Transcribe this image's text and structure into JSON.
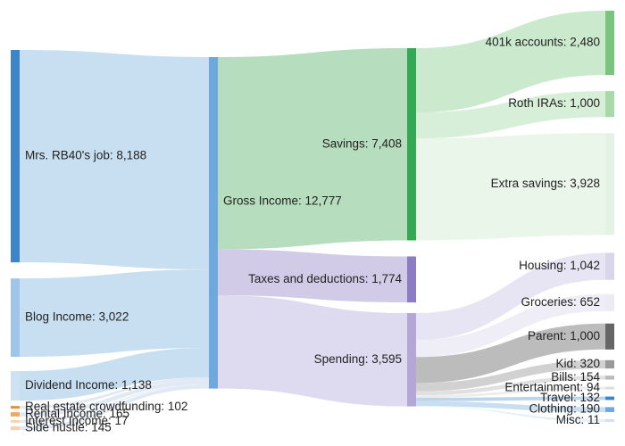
{
  "chart_data": {
    "type": "sankey",
    "title": "",
    "units": "",
    "columns": [
      [
        {
          "id": "job",
          "label": "Mrs. RB40's job: 8,188",
          "value": 8188,
          "color": "#3d85c6",
          "flow_color": "#c5ddf0",
          "label_side": "right"
        },
        {
          "id": "blog",
          "label": "Blog Income: 3,022",
          "value": 3022,
          "color": "#9fc5e8",
          "flow_color": "#c5ddf0",
          "label_side": "right"
        },
        {
          "id": "dividend",
          "label": "Dividend Income: 1,138",
          "value": 1138,
          "color": "#cfe2f3",
          "flow_color": "#c5ddf0",
          "label_side": "right"
        },
        {
          "id": "crowd",
          "label": "Real estate crowdfunding: 102",
          "value": 102,
          "color": "#e69138",
          "flow_color": "#dfe8f3",
          "label_side": "right"
        },
        {
          "id": "rental",
          "label": "Rental Income: 165",
          "value": 165,
          "color": "#f0a869",
          "flow_color": "#dfe8f3",
          "label_side": "right"
        },
        {
          "id": "interest",
          "label": "Interest Income: 17",
          "value": 17,
          "color": "#f6d2b0",
          "flow_color": "#dfe8f3",
          "label_side": "right"
        },
        {
          "id": "hustle",
          "label": "Side hustle: 145",
          "value": 145,
          "color": "#f6d2b0",
          "flow_color": "#dfe8f3",
          "label_side": "right"
        }
      ],
      [
        {
          "id": "gross",
          "label": "Gross Income: 12,777",
          "value": 12777,
          "color": "#6fa8dc",
          "label_side": "right"
        }
      ],
      [
        {
          "id": "savings",
          "label": "Savings: 7,408",
          "value": 7408,
          "color": "#34a853",
          "flow_color": "#b2dbba",
          "label_side": "left"
        },
        {
          "id": "taxes",
          "label": "Taxes and deductions: 1,774",
          "value": 1774,
          "color": "#8e7cc3",
          "flow_color": "#cfc8e6",
          "label_side": "left"
        },
        {
          "id": "spending",
          "label": "Spending: 3,595",
          "value": 3595,
          "color": "#b4a7d6",
          "flow_color": "#dcd8ee",
          "label_side": "left"
        }
      ],
      [
        {
          "id": "k401",
          "label": "401k accounts: 2,480",
          "value": 2480,
          "color": "#7bc47f",
          "flow_color": "#c8e8ca",
          "label_side": "left"
        },
        {
          "id": "roth",
          "label": "Roth IRAs: 1,000",
          "value": 1000,
          "color": "#a8d9aa",
          "flow_color": "#d5eed6",
          "label_side": "left"
        },
        {
          "id": "extra",
          "label": "Extra savings: 3,928",
          "value": 3928,
          "color": "#e3f3e3",
          "flow_color": "#e8f5e8",
          "label_side": "left"
        },
        {
          "id": "housing",
          "label": "Housing: 1,042",
          "value": 1042,
          "color": "#d9d6ec",
          "flow_color": "#e6e4f2",
          "label_side": "left"
        },
        {
          "id": "groceries",
          "label": "Groceries: 652",
          "value": 652,
          "color": "#eceaf5",
          "flow_color": "#eeedf6",
          "label_side": "left"
        },
        {
          "id": "parent",
          "label": "Parent: 1,000",
          "value": 1000,
          "color": "#666666",
          "flow_color": "#b8b8b8",
          "label_side": "left"
        },
        {
          "id": "kid",
          "label": "Kid: 320",
          "value": 320,
          "color": "#999999",
          "flow_color": "#cfcfcf",
          "label_side": "left"
        },
        {
          "id": "bills",
          "label": "Bills: 154",
          "value": 154,
          "color": "#bbbbbb",
          "flow_color": "#dedede",
          "label_side": "left"
        },
        {
          "id": "entertainment",
          "label": "Entertainment: 94",
          "value": 94,
          "color": "#dddddd",
          "flow_color": "#ebebeb",
          "label_side": "left"
        },
        {
          "id": "travel",
          "label": "Travel: 132",
          "value": 132,
          "color": "#3d85c6",
          "flow_color": "#b9d3ea",
          "label_side": "left"
        },
        {
          "id": "clothing",
          "label": "Clothing: 190",
          "value": 190,
          "color": "#6fa8dc",
          "flow_color": "#c5ddf0",
          "label_side": "left"
        },
        {
          "id": "misc",
          "label": "Misc: 11",
          "value": 11,
          "color": "#cfe2f3",
          "flow_color": "#e3eef8",
          "label_side": "left"
        }
      ]
    ],
    "links": [
      {
        "source": "job",
        "target": "gross",
        "value": 8188
      },
      {
        "source": "blog",
        "target": "gross",
        "value": 3022
      },
      {
        "source": "dividend",
        "target": "gross",
        "value": 1138
      },
      {
        "source": "crowd",
        "target": "gross",
        "value": 102
      },
      {
        "source": "rental",
        "target": "gross",
        "value": 165
      },
      {
        "source": "interest",
        "target": "gross",
        "value": 17
      },
      {
        "source": "hustle",
        "target": "gross",
        "value": 145
      },
      {
        "source": "gross",
        "target": "savings",
        "value": 7408
      },
      {
        "source": "gross",
        "target": "taxes",
        "value": 1774
      },
      {
        "source": "gross",
        "target": "spending",
        "value": 3595
      },
      {
        "source": "savings",
        "target": "k401",
        "value": 2480
      },
      {
        "source": "savings",
        "target": "roth",
        "value": 1000
      },
      {
        "source": "savings",
        "target": "extra",
        "value": 3928
      },
      {
        "source": "spending",
        "target": "housing",
        "value": 1042
      },
      {
        "source": "spending",
        "target": "groceries",
        "value": 652
      },
      {
        "source": "spending",
        "target": "parent",
        "value": 1000
      },
      {
        "source": "spending",
        "target": "kid",
        "value": 320
      },
      {
        "source": "spending",
        "target": "bills",
        "value": 154
      },
      {
        "source": "spending",
        "target": "entertainment",
        "value": 94
      },
      {
        "source": "spending",
        "target": "travel",
        "value": 132
      },
      {
        "source": "spending",
        "target": "clothing",
        "value": 190
      },
      {
        "source": "spending",
        "target": "misc",
        "value": 11
      }
    ]
  }
}
